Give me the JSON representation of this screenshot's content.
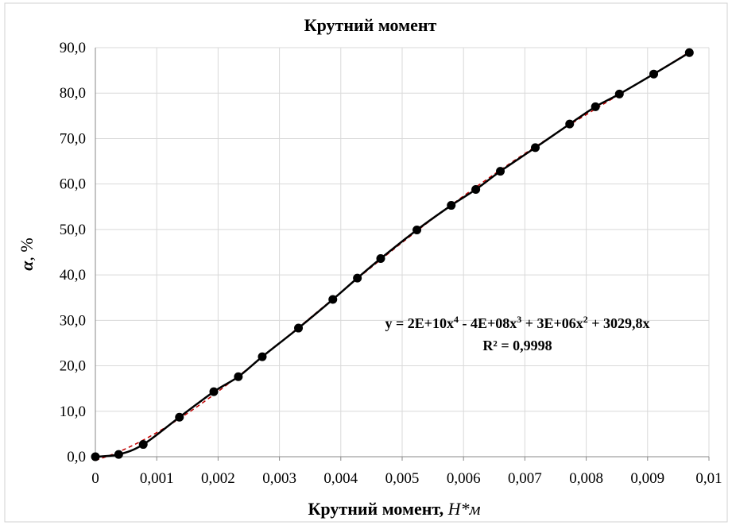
{
  "chart_data": {
    "type": "scatter",
    "title": "Крутний момент",
    "xlabel": {
      "text": "Крутний момент, ",
      "italic": "Н*м"
    },
    "ylabel": {
      "italic": "α",
      "text": ", %"
    },
    "xlim": [
      0,
      0.01
    ],
    "ylim": [
      0,
      90
    ],
    "x_ticks": [
      "0",
      "0,001",
      "0,002",
      "0,003",
      "0,004",
      "0,005",
      "0,006",
      "0,007",
      "0,008",
      "0,009",
      "0,01"
    ],
    "y_ticks": [
      "0,0",
      "10,0",
      "20,0",
      "30,0",
      "40,0",
      "50,0",
      "60,0",
      "70,0",
      "80,0",
      "90,0"
    ],
    "grid": true,
    "series": [
      {
        "color": "#000000",
        "marker": "circle",
        "line": "solid",
        "x": [
          0,
          0.00038,
          0.00078,
          0.00137,
          0.00193,
          0.00233,
          0.00272,
          0.00331,
          0.00387,
          0.00427,
          0.00465,
          0.00524,
          0.0058,
          0.0062,
          0.0066,
          0.00717,
          0.00773,
          0.00815,
          0.00854,
          0.0091,
          0.00968
        ],
        "y": [
          0.0,
          0.5,
          2.7,
          8.7,
          14.3,
          17.6,
          22.0,
          28.3,
          34.6,
          39.3,
          43.6,
          49.9,
          55.3,
          58.8,
          62.8,
          68.0,
          73.2,
          77.0,
          79.8,
          84.2,
          88.9
        ]
      }
    ],
    "trendline": {
      "type": "polynomial",
      "order": 4,
      "color": "#c00000",
      "dash": "dashed",
      "equation": {
        "prefix": "y = 2E+10x",
        "sup1": "4",
        "mid1": " - 4E+08x",
        "sup2": "3",
        "mid2": " + 3E+06x",
        "sup3": "2",
        "suffix": " + 3029,8x"
      },
      "r2": "R² = 0,9998"
    }
  }
}
